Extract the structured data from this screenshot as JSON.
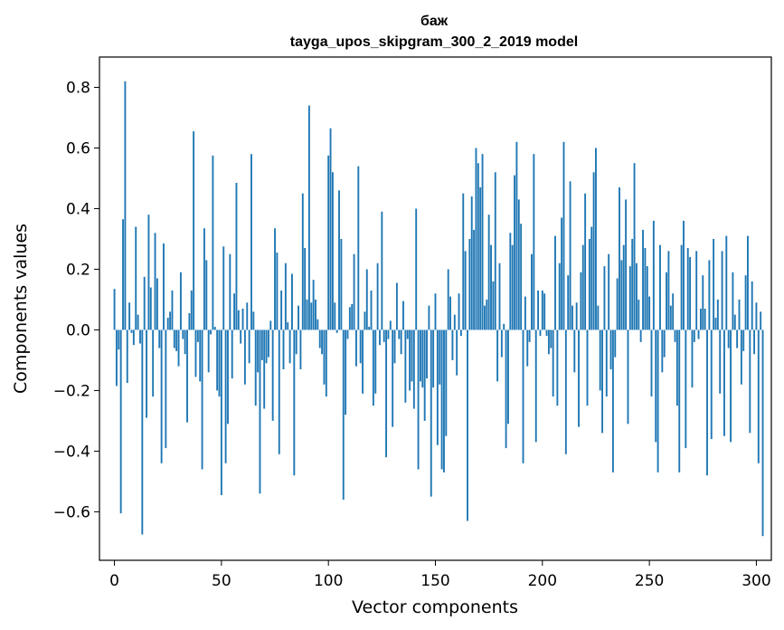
{
  "chart_data": {
    "type": "bar",
    "title": "баж",
    "subtitle": "tayga_upos_skipgram_300_2_2019 model",
    "xlabel": "Vector components",
    "ylabel": "Components values",
    "xlim": [
      -7,
      307
    ],
    "ylim": [
      -0.76,
      0.9
    ],
    "xticks": [
      0,
      50,
      100,
      150,
      200,
      250,
      300
    ],
    "xtick_labels": [
      "0",
      "50",
      "100",
      "150",
      "200",
      "250",
      "300"
    ],
    "yticks": [
      0.8,
      0.6,
      0.4,
      0.2,
      0.0,
      -0.2,
      -0.4,
      -0.6
    ],
    "ytick_labels": [
      "0.8",
      "0.6",
      "0.4",
      "0.2",
      "0.0",
      "−0.2",
      "−0.4",
      "−0.6"
    ],
    "grid": false,
    "bar_color": "#1f77b4",
    "values": [
      0.135,
      -0.185,
      -0.065,
      -0.605,
      0.365,
      0.82,
      -0.175,
      0.09,
      -0.01,
      -0.05,
      0.34,
      0.05,
      -0.045,
      -0.675,
      0.175,
      -0.29,
      0.38,
      0.14,
      -0.22,
      0.32,
      0.17,
      -0.06,
      -0.44,
      0.285,
      -0.39,
      0.04,
      0.06,
      0.13,
      -0.06,
      -0.07,
      -0.12,
      0.19,
      -0.03,
      -0.08,
      -0.305,
      0.055,
      0.13,
      0.655,
      -0.155,
      -0.04,
      -0.17,
      -0.46,
      0.335,
      0.23,
      -0.14,
      -0.015,
      0.575,
      0.01,
      -0.2,
      -0.22,
      -0.545,
      0.275,
      -0.44,
      -0.31,
      0.25,
      -0.16,
      0.12,
      0.485,
      0.065,
      -0.045,
      0.07,
      -0.18,
      0.09,
      -0.11,
      0.58,
      0.06,
      -0.25,
      -0.14,
      -0.54,
      -0.1,
      -0.26,
      -0.11,
      -0.09,
      0.03,
      -0.3,
      0.335,
      0.255,
      -0.41,
      0.13,
      -0.13,
      0.22,
      0.025,
      -0.11,
      0.185,
      -0.48,
      -0.08,
      0.08,
      -0.13,
      0.45,
      0.27,
      0.1,
      0.74,
      0.09,
      0.165,
      0.1,
      0.035,
      -0.06,
      -0.08,
      -0.18,
      -0.22,
      0.575,
      0.665,
      0.52,
      0.09,
      -0.01,
      0.46,
      0.3,
      -0.56,
      -0.28,
      -0.03,
      0.075,
      0.085,
      0.25,
      -0.12,
      0.54,
      -0.11,
      -0.21,
      0.06,
      0.2,
      0.01,
      0.13,
      -0.25,
      -0.21,
      0.22,
      -0.05,
      0.39,
      -0.04,
      -0.42,
      -0.03,
      0.03,
      -0.32,
      -0.11,
      0.155,
      -0.03,
      -0.08,
      0.095,
      -0.24,
      -0.03,
      -0.2,
      -0.17,
      -0.26,
      0.4,
      -0.46,
      -0.17,
      -0.19,
      -0.3,
      -0.16,
      0.08,
      -0.55,
      -0.19,
      0.12,
      -0.38,
      -0.18,
      -0.46,
      -0.47,
      -0.35,
      0.2,
      0.11,
      -0.1,
      0.05,
      -0.15,
      0.12,
      -0.02,
      0.45,
      0.26,
      -0.63,
      0.3,
      0.44,
      0.33,
      0.6,
      0.55,
      0.47,
      0.58,
      0.08,
      0.1,
      0.38,
      0.28,
      0.16,
      0.52,
      -0.17,
      0.22,
      -0.09,
      0.02,
      -0.39,
      -0.31,
      0.32,
      0.28,
      0.51,
      0.62,
      0.43,
      0.35,
      -0.44,
      0.11,
      -0.12,
      -0.04,
      0.25,
      0.58,
      -0.37,
      0.13,
      -0.02,
      0.13,
      0.12,
      -0.02,
      -0.08,
      -0.06,
      -0.22,
      0.31,
      -0.25,
      0.22,
      0.37,
      0.62,
      -0.41,
      0.18,
      0.49,
      0.08,
      -0.14,
      0.09,
      -0.32,
      0.19,
      0.28,
      0.45,
      -0.25,
      0.3,
      0.34,
      0.52,
      0.6,
      0.08,
      -0.2,
      -0.34,
      0.21,
      -0.22,
      0.25,
      -0.13,
      -0.47,
      -0.09,
      0.17,
      0.47,
      0.23,
      0.28,
      0.43,
      -0.31,
      0.21,
      0.3,
      0.55,
      0.22,
      0.1,
      -0.04,
      0.33,
      0.27,
      0.21,
      0.11,
      -0.22,
      0.36,
      -0.37,
      -0.47,
      0.28,
      -0.14,
      -0.09,
      0.19,
      0.26,
      0.08,
      0.12,
      -0.04,
      -0.25,
      -0.47,
      0.28,
      0.36,
      -0.39,
      0.27,
      0.24,
      -0.19,
      -0.04,
      0.26,
      -0.03,
      0.07,
      0.18,
      0.07,
      -0.48,
      0.23,
      -0.36,
      0.3,
      0.04,
      0.1,
      -0.21,
      0.26,
      -0.35,
      0.31,
      -0.06,
      -0.37,
      0.19,
      0.05,
      -0.06,
      0.1,
      -0.18,
      -0.07,
      0.18,
      0.31,
      -0.34,
      0.16,
      -0.08,
      0.09,
      -0.44,
      0.06,
      -0.68
    ]
  }
}
